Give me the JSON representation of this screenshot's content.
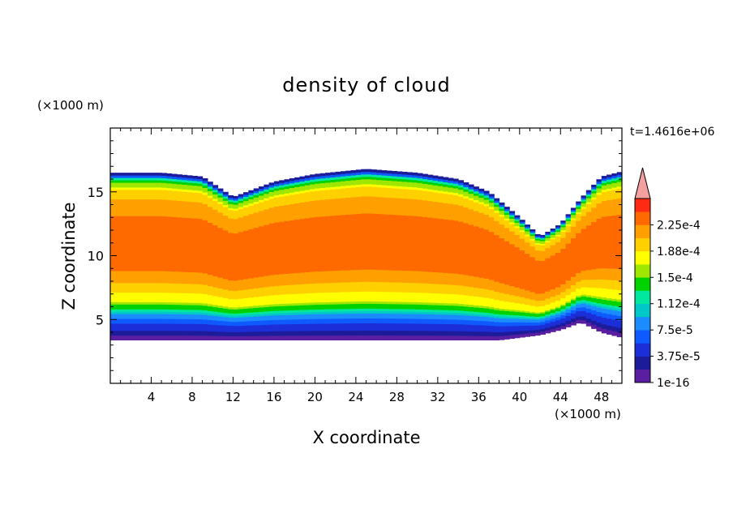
{
  "chart_data": {
    "type": "heatmap",
    "title": "density of cloud",
    "xlabel": "X coordinate",
    "ylabel": "Z coordinate",
    "x_unit_label": "(×1000 m)",
    "y_unit_label": "(×1000 m)",
    "time_label": "t=1.4616e+06",
    "xlim": [
      0,
      50
    ],
    "ylim": [
      0,
      20
    ],
    "x_ticks": [
      4,
      8,
      12,
      16,
      20,
      24,
      28,
      32,
      36,
      40,
      44,
      48
    ],
    "x_tick_labels": [
      "4",
      "8",
      "12",
      "16",
      "20",
      "24",
      "28",
      "32",
      "36",
      "40",
      "44",
      "48"
    ],
    "y_ticks": [
      5,
      10,
      15
    ],
    "y_tick_labels": [
      "5",
      "10",
      "15"
    ],
    "colorbar": {
      "levels": [
        1e-16,
        1.875e-05,
        3.75e-05,
        5.625e-05,
        7.5e-05,
        9.375e-05,
        0.0001125,
        0.00013125,
        0.00015,
        0.00016875,
        0.0001875,
        0.00020625,
        0.000225,
        0.00024375
      ],
      "colors": [
        "#5a1fa0",
        "#1c1c9a",
        "#1c2ed8",
        "#0e5aff",
        "#1a8cff",
        "#00c8c8",
        "#00e8a0",
        "#00d200",
        "#9fe600",
        "#ffff00",
        "#ffd000",
        "#ffa000",
        "#ff6a00",
        "#ff2a14"
      ],
      "overflow_color": "#f4a0a0",
      "tick_labels": [
        "1e-16",
        "3.75e-5",
        "7.5e-5",
        "1.12e-4",
        "1.5e-4",
        "1.88e-4",
        "2.25e-4"
      ]
    },
    "field_profile": [
      {
        "z": 3.4,
        "value": 1e-16
      },
      {
        "z": 3.8,
        "value": 1.9e-05
      },
      {
        "z": 4.3,
        "value": 4e-05
      },
      {
        "z": 4.8,
        "value": 6e-05
      },
      {
        "z": 5.2,
        "value": 8e-05
      },
      {
        "z": 5.6,
        "value": 0.0001
      },
      {
        "z": 6.0,
        "value": 0.00014
      },
      {
        "z": 6.5,
        "value": 0.00017
      },
      {
        "z": 7.2,
        "value": 0.00019
      },
      {
        "z": 8.0,
        "value": 0.00021
      },
      {
        "z": 9.0,
        "value": 0.00023
      },
      {
        "z": 12.5,
        "value": 0.000235
      },
      {
        "z": 13.8,
        "value": 0.000215
      },
      {
        "z": 15.0,
        "value": 0.0002
      },
      {
        "z": 16.0,
        "value": 0.00013
      },
      {
        "z": 16.5,
        "value": 1e-16
      }
    ],
    "cloud_top": [
      {
        "x": 0,
        "z": 16.5
      },
      {
        "x": 5,
        "z": 16.5
      },
      {
        "x": 9,
        "z": 16.2
      },
      {
        "x": 12,
        "z": 14.6
      },
      {
        "x": 16,
        "z": 15.8
      },
      {
        "x": 20,
        "z": 16.4
      },
      {
        "x": 25,
        "z": 16.8
      },
      {
        "x": 30,
        "z": 16.5
      },
      {
        "x": 34,
        "z": 16.0
      },
      {
        "x": 37,
        "z": 15.0
      },
      {
        "x": 40,
        "z": 13.0
      },
      {
        "x": 42,
        "z": 11.5
      },
      {
        "x": 44,
        "z": 12.5
      },
      {
        "x": 46,
        "z": 14.5
      },
      {
        "x": 48,
        "z": 16.2
      },
      {
        "x": 50,
        "z": 16.6
      }
    ],
    "cloud_base": [
      {
        "x": 0,
        "z": 3.4
      },
      {
        "x": 38,
        "z": 3.4
      },
      {
        "x": 42,
        "z": 3.8
      },
      {
        "x": 44,
        "z": 4.2
      },
      {
        "x": 46,
        "z": 4.8
      },
      {
        "x": 48,
        "z": 4.0
      },
      {
        "x": 50,
        "z": 3.6
      }
    ]
  }
}
